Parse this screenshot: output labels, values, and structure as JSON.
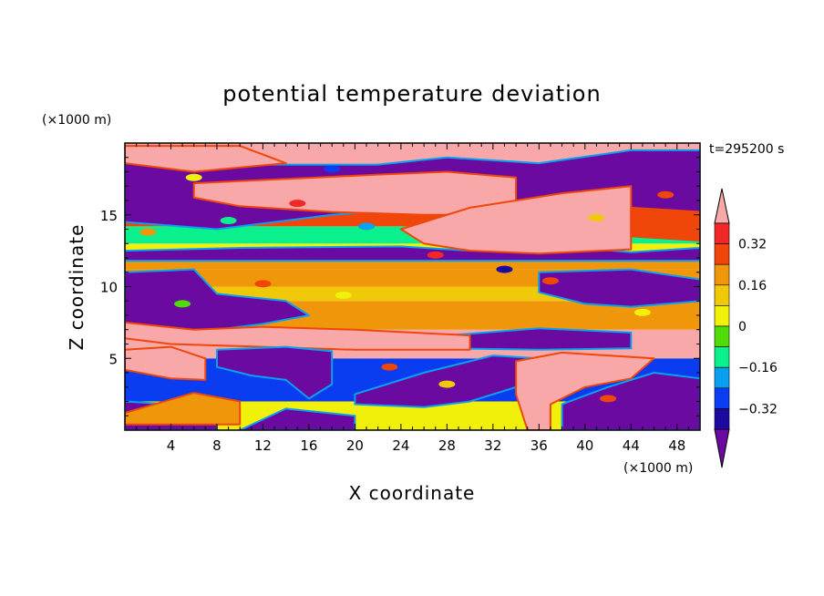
{
  "chart_data": {
    "type": "heatmap",
    "title": "potential temperature deviation",
    "xlabel": "X coordinate",
    "ylabel": "Z coordinate",
    "x_unit": "(×1000 m)",
    "y_unit": "(×1000 m)",
    "time_label": "t=295200 s",
    "xlim": [
      0,
      50
    ],
    "ylim": [
      0,
      20
    ],
    "x_ticks": [
      "4",
      "8",
      "12",
      "16",
      "20",
      "24",
      "28",
      "32",
      "36",
      "40",
      "44",
      "48"
    ],
    "y_ticks": [
      "5",
      "10",
      "15"
    ],
    "colorbar": {
      "labels": [
        "0.32",
        "0.16",
        "0",
        "−0.16",
        "−0.32"
      ],
      "label_values": [
        0.32,
        0.16,
        0,
        -0.16,
        -0.32
      ],
      "levels": [
        -0.4,
        -0.32,
        -0.24,
        -0.16,
        -0.08,
        0,
        0.08,
        0.16,
        0.24,
        0.32,
        0.4
      ],
      "colors": [
        "#6a0aa0",
        "#1c0aa0",
        "#0a3cf0",
        "#0aa0f0",
        "#0af08c",
        "#50dc0a",
        "#f0f00a",
        "#f0c80a",
        "#f0960a",
        "#f0460a",
        "#f02828",
        "#f8a8a8"
      ],
      "extend": "both"
    },
    "bands": [
      {
        "z": [
          0,
          2
        ],
        "value": 0.05
      },
      {
        "z": [
          2,
          5
        ],
        "value": -0.25
      },
      {
        "z": [
          5,
          6
        ],
        "value": 0.42
      },
      {
        "z": [
          6,
          7
        ],
        "value": 0.45
      },
      {
        "z": [
          7,
          9
        ],
        "value": 0.2
      },
      {
        "z": [
          9,
          10
        ],
        "value": 0.12
      },
      {
        "z": [
          10,
          11.2
        ],
        "value": 0.16
      },
      {
        "z": [
          11.2,
          12
        ],
        "value": 0.22
      },
      {
        "z": [
          12,
          13
        ],
        "value": 0.05
      },
      {
        "z": [
          13,
          14.2
        ],
        "value": -0.1
      },
      {
        "z": [
          14.2,
          15.6
        ],
        "value": 0.3
      },
      {
        "z": [
          15.6,
          17.2
        ],
        "value": -0.45
      },
      {
        "z": [
          17.2,
          20
        ],
        "value": 0.45
      }
    ],
    "regions": [
      {
        "value": -0.45,
        "points": [
          [
            0,
            12.5
          ],
          [
            10,
            12.7
          ],
          [
            24,
            12.8
          ],
          [
            30,
            12.5
          ],
          [
            38,
            12.8
          ],
          [
            44,
            12.4
          ],
          [
            50,
            12.7
          ],
          [
            50,
            11.8
          ],
          [
            0,
            11.8
          ]
        ]
      },
      {
        "value": -0.45,
        "points": [
          [
            0,
            19.5
          ],
          [
            8,
            19.5
          ],
          [
            12,
            18.5
          ],
          [
            22,
            18.5
          ],
          [
            28,
            19
          ],
          [
            36,
            18.6
          ],
          [
            44,
            19.5
          ],
          [
            50,
            19.5
          ],
          [
            50,
            15
          ],
          [
            44,
            15.5
          ],
          [
            40,
            13.5
          ],
          [
            32,
            14
          ],
          [
            26,
            15.5
          ],
          [
            18,
            15
          ],
          [
            8,
            14
          ],
          [
            0,
            14.5
          ]
        ]
      },
      {
        "value": 0.45,
        "points": [
          [
            6,
            17.2
          ],
          [
            14,
            17.5
          ],
          [
            22,
            17.8
          ],
          [
            28,
            18
          ],
          [
            34,
            17.6
          ],
          [
            34,
            15
          ],
          [
            26,
            15
          ],
          [
            18,
            15.2
          ],
          [
            10,
            15.6
          ],
          [
            6,
            16.2
          ]
        ]
      },
      {
        "value": 0.45,
        "points": [
          [
            24,
            14
          ],
          [
            30,
            15.5
          ],
          [
            38,
            16.5
          ],
          [
            44,
            17
          ],
          [
            44,
            12.6
          ],
          [
            36,
            12.3
          ],
          [
            30,
            12.5
          ],
          [
            26,
            13
          ]
        ]
      },
      {
        "value": 0.45,
        "points": [
          [
            0,
            19.8
          ],
          [
            10,
            19.8
          ],
          [
            14,
            18.6
          ],
          [
            6,
            18
          ],
          [
            0,
            18.6
          ]
        ]
      },
      {
        "value": 0.24,
        "points": [
          [
            44,
            15.5
          ],
          [
            50,
            15.2
          ],
          [
            50,
            13.2
          ],
          [
            44,
            13.5
          ]
        ]
      },
      {
        "value": -0.45,
        "points": [
          [
            0,
            11
          ],
          [
            6,
            11.2
          ],
          [
            8,
            9.5
          ],
          [
            14,
            9
          ],
          [
            16,
            8
          ],
          [
            12,
            7.4
          ],
          [
            8,
            7
          ],
          [
            4,
            6.8
          ],
          [
            0,
            7.5
          ]
        ]
      },
      {
        "value": -0.45,
        "points": [
          [
            36,
            11
          ],
          [
            44,
            11.2
          ],
          [
            50,
            10.5
          ],
          [
            50,
            9
          ],
          [
            44,
            8.6
          ],
          [
            40,
            8.8
          ],
          [
            36,
            9.6
          ]
        ]
      },
      {
        "value": -0.45,
        "points": [
          [
            28,
            6.6
          ],
          [
            36,
            7.1
          ],
          [
            44,
            6.8
          ],
          [
            44,
            5.7
          ],
          [
            36,
            5.6
          ],
          [
            28,
            5.7
          ]
        ]
      },
      {
        "value": 0.42,
        "points": [
          [
            0,
            7.5
          ],
          [
            6,
            7
          ],
          [
            12,
            7.2
          ],
          [
            20,
            7
          ],
          [
            30,
            6.6
          ],
          [
            30,
            5.6
          ],
          [
            20,
            5.6
          ],
          [
            12,
            5.8
          ],
          [
            4,
            6
          ],
          [
            0,
            6.4
          ]
        ]
      },
      {
        "value": -0.45,
        "points": [
          [
            8,
            5.6
          ],
          [
            14,
            5.8
          ],
          [
            18,
            5.5
          ],
          [
            18,
            3.2
          ],
          [
            16,
            2.2
          ],
          [
            14,
            3.5
          ],
          [
            11,
            3.8
          ],
          [
            8,
            4.4
          ]
        ]
      },
      {
        "value": 0.45,
        "points": [
          [
            0,
            5.6
          ],
          [
            4,
            5.8
          ],
          [
            7,
            5
          ],
          [
            7,
            3.5
          ],
          [
            4,
            3.6
          ],
          [
            0,
            4.2
          ]
        ]
      },
      {
        "value": -0.45,
        "points": [
          [
            20,
            2.5
          ],
          [
            26,
            4
          ],
          [
            32,
            5.2
          ],
          [
            36,
            5
          ],
          [
            34,
            3
          ],
          [
            30,
            2
          ],
          [
            26,
            1.6
          ],
          [
            20,
            1.8
          ]
        ]
      },
      {
        "value": 0.45,
        "points": [
          [
            34,
            4.8
          ],
          [
            38,
            5.4
          ],
          [
            46,
            5
          ],
          [
            44,
            3.6
          ],
          [
            40,
            3
          ],
          [
            37,
            1.8
          ],
          [
            37,
            0
          ],
          [
            35,
            0
          ],
          [
            34,
            2.5
          ]
        ]
      },
      {
        "value": -0.45,
        "points": [
          [
            38,
            1.8
          ],
          [
            42,
            3
          ],
          [
            46,
            4
          ],
          [
            50,
            3.6
          ],
          [
            50,
            0
          ],
          [
            38,
            0
          ]
        ]
      },
      {
        "value": -0.45,
        "points": [
          [
            0,
            2
          ],
          [
            4,
            1.8
          ],
          [
            8,
            0.8
          ],
          [
            8,
            0
          ],
          [
            0,
            0
          ]
        ]
      },
      {
        "value": 0.16,
        "points": [
          [
            0,
            1.2
          ],
          [
            6,
            2.6
          ],
          [
            10,
            2
          ],
          [
            10,
            0.4
          ],
          [
            0,
            0.4
          ]
        ]
      },
      {
        "value": -0.45,
        "points": [
          [
            10,
            0
          ],
          [
            14,
            1.5
          ],
          [
            20,
            1
          ],
          [
            20,
            0
          ]
        ]
      }
    ],
    "speckles": [
      {
        "x": 2,
        "z": 13.8,
        "value": 0.2
      },
      {
        "x": 9,
        "z": 14.6,
        "value": -0.1
      },
      {
        "x": 15,
        "z": 15.8,
        "value": 0.32
      },
      {
        "x": 21,
        "z": 14.2,
        "value": -0.2
      },
      {
        "x": 27,
        "z": 12.2,
        "value": 0.35
      },
      {
        "x": 33,
        "z": 11.2,
        "value": -0.35
      },
      {
        "x": 41,
        "z": 14.8,
        "value": 0.1
      },
      {
        "x": 47,
        "z": 16.4,
        "value": 0.3
      },
      {
        "x": 5,
        "z": 8.8,
        "value": -0.05
      },
      {
        "x": 12,
        "z": 10.2,
        "value": 0.3
      },
      {
        "x": 19,
        "z": 9.4,
        "value": 0.05
      },
      {
        "x": 37,
        "z": 10.4,
        "value": 0.3
      },
      {
        "x": 45,
        "z": 8.2,
        "value": 0.0
      },
      {
        "x": 23,
        "z": 4.4,
        "value": 0.28
      },
      {
        "x": 28,
        "z": 3.2,
        "value": 0.1
      },
      {
        "x": 42,
        "z": 2.2,
        "value": 0.3
      },
      {
        "x": 6,
        "z": 17.6,
        "value": 0.05
      },
      {
        "x": 18,
        "z": 18.2,
        "value": -0.3
      }
    ]
  }
}
